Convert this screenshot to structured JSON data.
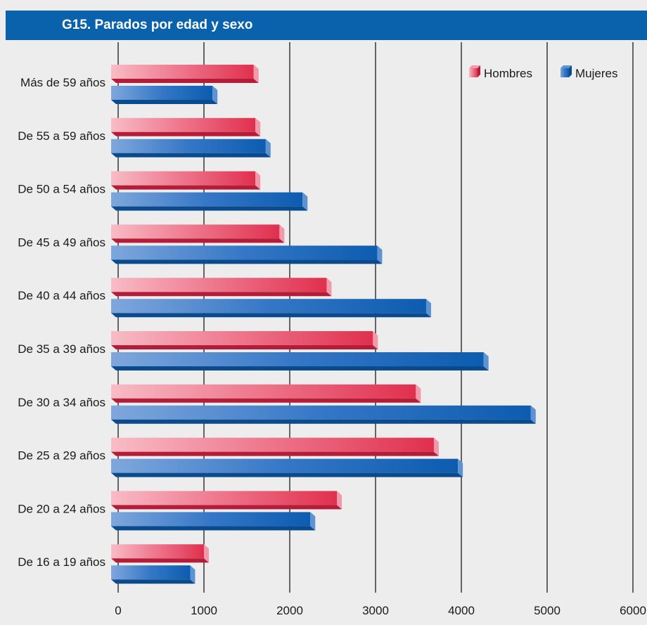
{
  "title": "G15. Parados por edad y sexo",
  "chart_data": {
    "type": "bar",
    "orientation": "horizontal",
    "title": "G15. Parados por edad y sexo",
    "categories": [
      "Más de 59 años",
      "De 55 a 59 años",
      "De 50 a 54 años",
      "De 45 a 49 años",
      "De 40 a 44 años",
      "De 35 a 39 años",
      "De 30 a 34 años",
      "De 25 a 29 años",
      "De 20 a 24 años",
      "De 16 a 19 años"
    ],
    "series": [
      {
        "name": "Hombres",
        "color": "#e0304e",
        "values": [
          1580,
          1600,
          1600,
          1880,
          2430,
          2970,
          3470,
          3680,
          2550,
          1000
        ]
      },
      {
        "name": "Mujeres",
        "color": "#0f62b4",
        "values": [
          1100,
          1720,
          2150,
          3020,
          3590,
          4260,
          4810,
          3960,
          2240,
          840
        ]
      }
    ],
    "xlim": [
      0,
      6000
    ],
    "xticks": [
      0,
      1000,
      2000,
      3000,
      4000,
      5000,
      6000
    ],
    "xlabel": "",
    "ylabel": "",
    "grid": true,
    "legend": "top-right"
  }
}
